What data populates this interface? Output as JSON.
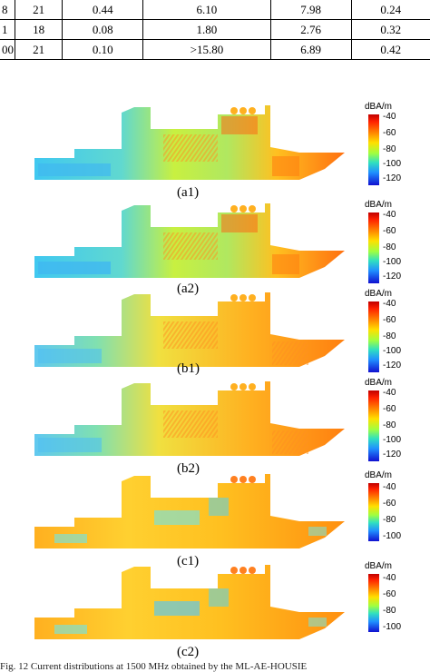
{
  "table": {
    "rows": [
      [
        "8",
        "21",
        "0.44",
        "6.10",
        "7.98",
        "0.24"
      ],
      [
        "1",
        "18",
        "0.08",
        "1.80",
        "2.76",
        "0.32"
      ],
      [
        "00",
        "21",
        "0.10",
        ">15.80",
        "6.89",
        "0.42"
      ]
    ]
  },
  "colorbar": {
    "unit": "dBA/m",
    "ticks_a": [
      "-40",
      "-60",
      "-80",
      "-100",
      "-120"
    ],
    "ticks_c": [
      "-40",
      "-60",
      "-80",
      "-100"
    ]
  },
  "panels": [
    {
      "label": "(a1)"
    },
    {
      "label": "(a2)"
    },
    {
      "label": "(b1)"
    },
    {
      "label": "(b2)"
    },
    {
      "label": "(c1)"
    },
    {
      "label": "(c2)"
    }
  ],
  "caption": "Fig. 12 Current distributions at 1500 MHz obtained by the ML-AE-HOUSIE"
}
